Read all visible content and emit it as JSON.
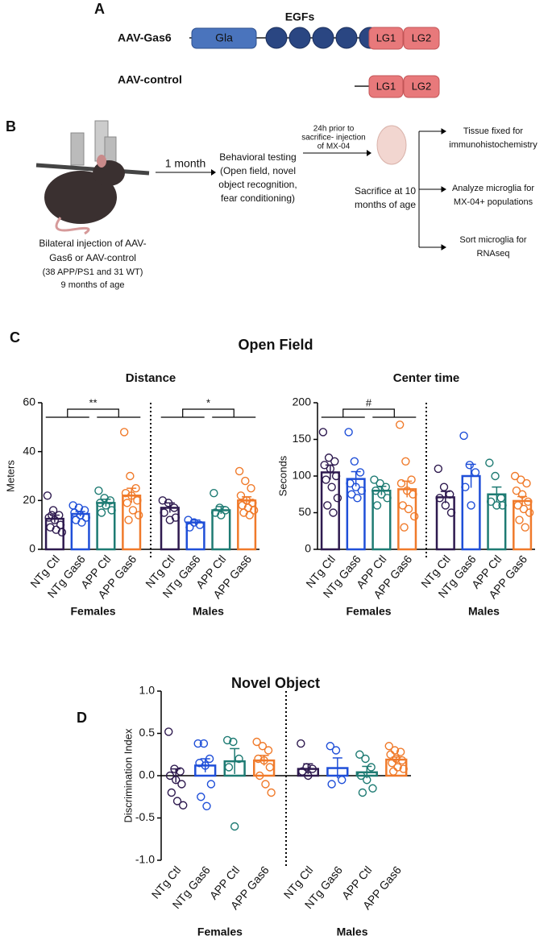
{
  "panel_a": {
    "label": "A",
    "egfs": "EGFs",
    "construct1": "AAV-Gas6",
    "gla": "Gla",
    "lg1": "LG1",
    "lg2": "LG2",
    "construct2": "AAV-control"
  },
  "panel_b": {
    "label": "B",
    "step1": "1 month",
    "testing": [
      "Behavioral testing",
      "(Open field, novel",
      "object recognition,",
      "fear conditioning)"
    ],
    "injection": [
      "24h prior to",
      "sacrifice- injection",
      "of MX-04"
    ],
    "sacrifice": [
      "Sacrifice at 10",
      "months of age"
    ],
    "outcomes": [
      [
        "Tissue fixed for",
        "immunohistochemistry"
      ],
      [
        "Analyze microglia for",
        "MX-04+ populations"
      ],
      [
        "Sort microglia for",
        "RNAseq"
      ]
    ],
    "caption": [
      "Bilateral injection of AAV-",
      "Gas6 or AAV-control",
      "(38 APP/PS1 and 31 WT)",
      "9 months of age"
    ]
  },
  "panel_c": {
    "label": "C",
    "title": "Open Field"
  },
  "panel_d": {
    "label": "D",
    "title": "Novel Object"
  },
  "chart_data": [
    {
      "type": "bar",
      "title": "Distance",
      "ylabel": "Meters",
      "ylim": [
        0,
        60
      ],
      "yticks": [
        0,
        20,
        40,
        60
      ],
      "categories": [
        "NTg Ctl",
        "NTg Gas6",
        "APP Ctl",
        "APP Gas6",
        "NTg Ctl",
        "NTg Gas6",
        "APP Ctl",
        "APP Gas6"
      ],
      "groups": [
        "Females",
        "Males"
      ],
      "colors": [
        "#2e1a4f",
        "#1f4fd8",
        "#1e7b73",
        "#f07a2a",
        "#2e1a4f",
        "#1f4fd8",
        "#1e7b73",
        "#f07a2a"
      ],
      "values": [
        12.5,
        14.5,
        19,
        22,
        17,
        11,
        16,
        20
      ],
      "errors": [
        1.5,
        1,
        1.5,
        3,
        2,
        1,
        1.5,
        1.5
      ],
      "points": [
        [
          22,
          16,
          14,
          13,
          12,
          10,
          9,
          8,
          7,
          14
        ],
        [
          18,
          17,
          16,
          15,
          14,
          13,
          12,
          11
        ],
        [
          24,
          21,
          20,
          19,
          18,
          16,
          15
        ],
        [
          48,
          30,
          25,
          23,
          22,
          20,
          19,
          16,
          14,
          12
        ],
        [
          20,
          19,
          17,
          15,
          12,
          13
        ],
        [
          12,
          11,
          10,
          9
        ],
        [
          23,
          17,
          16,
          15,
          14
        ],
        [
          32,
          28,
          25,
          22,
          20,
          19,
          18,
          17,
          16,
          15,
          14
        ]
      ],
      "annotations": [
        "**",
        "*"
      ]
    },
    {
      "type": "bar",
      "title": "Center time",
      "ylabel": "Seconds",
      "ylim": [
        0,
        200
      ],
      "yticks": [
        0,
        50,
        100,
        150,
        200
      ],
      "categories": [
        "NTg Ctl",
        "NTg Gas6",
        "APP Ctl",
        "APP Gas6",
        "NTg Ctl",
        "NTg Gas6",
        "APP Ctl",
        "APP Gas6"
      ],
      "groups": [
        "Females",
        "Males"
      ],
      "colors": [
        "#2e1a4f",
        "#1f4fd8",
        "#1e7b73",
        "#f07a2a",
        "#2e1a4f",
        "#1f4fd8",
        "#1e7b73",
        "#f07a2a"
      ],
      "values": [
        105,
        96,
        80,
        82,
        71,
        100,
        75,
        66
      ],
      "errors": [
        10,
        10,
        6,
        11,
        8,
        16,
        10,
        6
      ],
      "points": [
        [
          160,
          125,
          120,
          115,
          110,
          100,
          95,
          85,
          70,
          60,
          50
        ],
        [
          160,
          120,
          105,
          90,
          85,
          80,
          75,
          70
        ],
        [
          95,
          90,
          85,
          80,
          75,
          70,
          60
        ],
        [
          170,
          120,
          95,
          90,
          80,
          75,
          60,
          55,
          45,
          30
        ],
        [
          110,
          85,
          75,
          70,
          60,
          50
        ],
        [
          155,
          115,
          105,
          85,
          60
        ],
        [
          118,
          100,
          70,
          65,
          60,
          60
        ],
        [
          100,
          95,
          90,
          80,
          75,
          65,
          60,
          55,
          50,
          40,
          30
        ]
      ],
      "annotations": [
        "#"
      ]
    },
    {
      "type": "bar",
      "ylabel": "Discrimination Index",
      "ylim": [
        -1,
        1
      ],
      "yticks": [
        {
          "value": -1,
          "label": "-1.0"
        },
        {
          "value": -0.5,
          "label": "-0.5"
        },
        {
          "value": 0,
          "label": "0.0"
        },
        {
          "value": 0.5,
          "label": "0.5"
        },
        {
          "value": 1,
          "label": "1.0"
        }
      ],
      "categories": [
        "NTg Ctl",
        "NTg Gas6",
        "APP Ctl",
        "APP Gas6",
        "NTg Ctl",
        "NTg Gas6",
        "APP Ctl",
        "APP Gas6"
      ],
      "groups": [
        "Females",
        "Males"
      ],
      "colors": [
        "#2e1a4f",
        "#1f4fd8",
        "#1e7b73",
        "#f07a2a",
        "#2e1a4f",
        "#1f4fd8",
        "#1e7b73",
        "#f07a2a"
      ],
      "values": [
        0.0,
        0.12,
        0.17,
        0.18,
        0.08,
        0.09,
        0.04,
        0.19
      ],
      "errors": [
        0.08,
        0.08,
        0.15,
        0.06,
        0.06,
        0.12,
        0.07,
        0.03
      ],
      "points": [
        [
          0.52,
          0.08,
          0.05,
          0.0,
          -0.05,
          -0.1,
          -0.2,
          -0.3,
          -0.35
        ],
        [
          0.38,
          0.38,
          0.2,
          0.15,
          0.12,
          -0.1,
          -0.25,
          -0.36
        ],
        [
          0.42,
          0.4,
          0.2,
          0.1,
          -0.6
        ],
        [
          0.4,
          0.35,
          0.3,
          0.2,
          0.18,
          0.1,
          0.0,
          -0.1,
          -0.2
        ],
        [
          0.38,
          0.1,
          0.08,
          0.05,
          0.0
        ],
        [
          0.35,
          0.3,
          -0.05,
          -0.1
        ],
        [
          0.25,
          0.2,
          0.1,
          0.0,
          -0.05,
          -0.15,
          -0.2
        ],
        [
          0.35,
          0.3,
          0.28,
          0.25,
          0.2,
          0.18,
          0.15,
          0.1,
          0.08,
          0.05
        ]
      ]
    }
  ]
}
